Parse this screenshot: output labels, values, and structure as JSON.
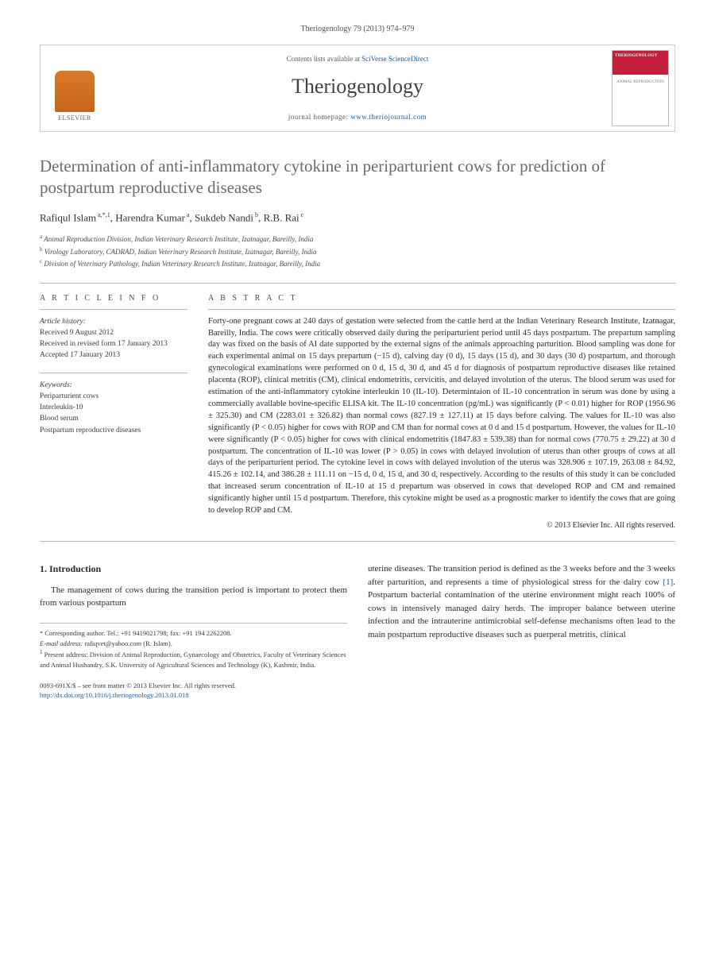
{
  "header": {
    "citation": "Theriogenology 79 (2013) 974–979",
    "contents_prefix": "Contents lists available at ",
    "contents_link": "SciVerse ScienceDirect",
    "journal_name": "Theriogenology",
    "homepage_prefix": "journal homepage: ",
    "homepage_link": "www.theriojournal.com",
    "elsevier": "ELSEVIER",
    "cover_title": "THERIOGENOLOGY",
    "cover_sub": "ANIMAL REPRODUCTION"
  },
  "title": "Determination of anti-inflammatory cytokine in periparturient cows for prediction of postpartum reproductive diseases",
  "authors_html": "Rafiqul Islam<sup> a,*,1</sup>, Harendra Kumar<sup> a</sup>, Sukdeb Nandi<sup> b</sup>, R.B. Rai<sup> c</sup>",
  "affiliations": [
    "a Animal Reproduction Division, Indian Veterinary Research Institute, Izatnagar, Bareilly, India",
    "b Virology Laboratory, CADRAD, Indian Veterinary Research Institute, Izatnagar, Bareilly, India",
    "c Division of Veterinary Pathology, Indian Veterinary Research Institute, Izatnagar, Bareilly, India"
  ],
  "article_info": {
    "heading": "A R T I C L E  I N F O",
    "history_label": "Article history:",
    "received": "Received 9 August 2012",
    "revised": "Received in revised form 17 January 2013",
    "accepted": "Accepted 17 January 2013",
    "keywords_label": "Keywords:",
    "keywords": [
      "Periparturient cows",
      "Interleukin-10",
      "Blood serum",
      "Postpartum reproductive diseases"
    ]
  },
  "abstract": {
    "heading": "A B S T R A C T",
    "text": "Forty-one pregnant cows at 240 days of gestation were selected from the cattle herd at the Indian Veterinary Research Institute, Izatnagar, Bareilly, India. The cows were critically observed daily during the periparturient period until 45 days postpartum. The prepartum sampling day was fixed on the basis of AI date supported by the external signs of the animals approaching parturition. Blood sampling was done for each experimental animal on 15 days prepartum (−15 d), calving day (0 d), 15 days (15 d), and 30 days (30 d) postpartum, and thorough gynecological examinations were performed on 0 d, 15 d, 30 d, and 45 d for diagnosis of postpartum reproductive diseases like retained placenta (ROP), clinical metritis (CM), clinical endometritis, cervicitis, and delayed involution of the uterus. The blood serum was used for estimation of the anti-inflammatory cytokine interleukin 10 (IL-10). Determintaion of IL-10 concentration in serum was done by using a commercially available bovine-specific ELISA kit. The IL-10 concentration (pg/mL) was significantly (P < 0.01) higher for ROP (1956.96 ± 325.30) and CM (2283.01 ± 326.82) than normal cows (827.19 ± 127.11) at 15 days before calving. The values for IL-10 was also significantly (P < 0.05) higher for cows with ROP and CM than for normal cows at 0 d and 15 d postpartum. However, the values for IL-10 were significantly (P < 0.05) higher for cows with clinical endometritis (1847.83 ± 539.38) than for normal cows (770.75 ± 29.22) at 30 d postpartum. The concentration of IL-10 was lower (P > 0.05) in cows with delayed involution of uterus than other groups of cows at all days of the periparturient period. The cytokine level in cows with delayed involution of the uterus was 328.906 ± 107.19, 263.08 ± 84.92, 415.26 ± 102.14, and 386.28 ± 111.11 on −15 d, 0 d, 15 d, and 30 d, respectively. According to the results of this study it can be concluded that increased serum concentration of IL-10 at 15 d prepartum was observed in cows that developed ROP and CM and remained significantly higher until 15 d postpartum. Therefore, this cytokine might be used as a prognostic marker to identify the cows that are going to develop ROP and CM.",
    "copyright": "© 2013 Elsevier Inc. All rights reserved."
  },
  "intro": {
    "heading": "1. Introduction",
    "left": "The management of cows during the transition period is important to protect them from various postpartum",
    "right": "uterine diseases. The transition period is defined as the 3 weeks before and the 3 weeks after parturition, and represents a time of physiological stress for the dairy cow [1]. Postpartum bacterial contamination of the uterine environment might reach 100% of cows in intensively managed dairy herds. The improper balance between uterine infection and the intrauterine antimicrobial self-defense mechanisms often lead to the main postpartum reproductive diseases such as puerperal metritis, clinical"
  },
  "footnotes": {
    "corr": "* Corresponding author. Tel.: +91 9419021798; fax: +91 194 2262208.",
    "email_label": "E-mail address:",
    "email": "rafiqvet@yahoo.com (R. Islam).",
    "present": "1 Present address: Division of Animal Reproduction, Gynaecology and Obstetrics, Faculty of Veterinary Sciences and Animal Husbandry, S.K. University of Agricultural Sciences and Technology (K), Kashmir, India."
  },
  "footer": {
    "line1": "0093-691X/$ – see front matter © 2013 Elsevier Inc. All rights reserved.",
    "doi": "http://dx.doi.org/10.1016/j.theriogenology.2013.01.018"
  },
  "colors": {
    "link": "#1a5aa8",
    "cover_red": "#c41e3a",
    "elsevier_orange": "#d87a2a",
    "text": "#2a2a2a",
    "gray_title": "#6a6a6a",
    "rule": "#b8b8b8"
  }
}
